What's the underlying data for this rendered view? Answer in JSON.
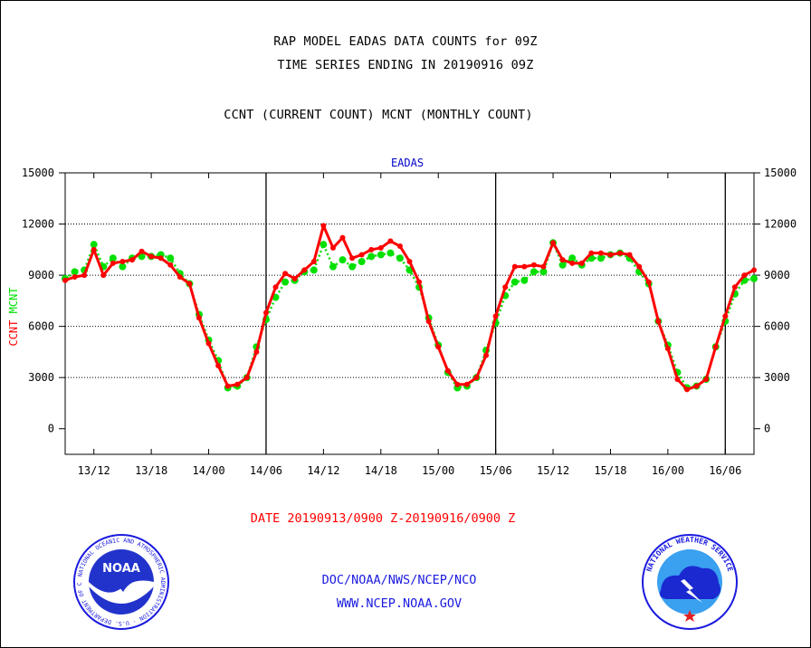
{
  "titles": {
    "line1": "RAP MODEL EADAS DATA COUNTS for 09Z",
    "line2": "TIME SERIES ENDING IN 20190916 09Z",
    "line3": "CCNT (CURRENT COUNT) MCNT (MONTHLY COUNT)"
  },
  "date_range": "DATE 20190913/0900 Z-20190916/0900 Z",
  "footer": {
    "link1": "DOC/NOAA/NWS/NCEP/NCO",
    "link2": "WWW.NCEP.NOAA.GOV"
  },
  "logos": {
    "noaa": {
      "center_text": "NOAA",
      "ring_text": "NATIONAL OCEANIC AND ATMOSPHERIC ADMINISTRATION · U.S. DEPARTMENT OF COMMERCE"
    },
    "nws": {
      "ring_text": "NATIONAL WEATHER SERVICE"
    }
  },
  "chart_data": {
    "type": "line",
    "title": "EADAS",
    "ylabel_left": "CCNT  MCNT",
    "ylim": [
      -1500,
      15000
    ],
    "yticks": [
      0,
      3000,
      6000,
      9000,
      12000,
      15000
    ],
    "xlim": [
      0,
      72
    ],
    "x_units": "hours from 2019-09-13 09Z",
    "xtick_positions": [
      3,
      9,
      15,
      21,
      27,
      33,
      39,
      45,
      51,
      57,
      63,
      69
    ],
    "xtick_labels": [
      "13/12",
      "13/18",
      "14/00",
      "14/06",
      "14/12",
      "14/18",
      "15/00",
      "15/06",
      "15/12",
      "15/18",
      "16/00",
      "16/06"
    ],
    "day_boundaries": [
      21,
      45,
      69
    ],
    "grid": "horizontal dotted at 3000, 6000, 9000, 12000",
    "colors": {
      "ccnt": "#ff0000",
      "mcnt": "#00e000",
      "title": "#0000cc"
    },
    "series": [
      {
        "name": "CCNT",
        "values": [
          8700,
          8900,
          9000,
          10500,
          9000,
          9700,
          9800,
          9900,
          10400,
          10100,
          10000,
          9600,
          8900,
          8500,
          6500,
          5000,
          3700,
          2500,
          2600,
          3000,
          4500,
          6800,
          8300,
          9100,
          8800,
          9300,
          9800,
          11900,
          10600,
          11200,
          10000,
          10200,
          10500,
          10600,
          11000,
          10700,
          9800,
          8600,
          6300,
          4800,
          3400,
          2600,
          2600,
          3000,
          4300,
          6600,
          8300,
          9500,
          9500,
          9600,
          9500,
          10900,
          9900,
          9700,
          9700,
          10300,
          10300,
          10200,
          10300,
          10200,
          9500,
          8600,
          6300,
          4700,
          2900,
          2300,
          2500,
          2900,
          4800,
          6600,
          8300,
          9000,
          9300
        ]
      },
      {
        "name": "MCNT",
        "values": [
          8800,
          9200,
          9300,
          10800,
          9500,
          10000,
          9500,
          10000,
          10100,
          10100,
          10200,
          10000,
          9100,
          8500,
          6700,
          5200,
          4000,
          2400,
          2500,
          3000,
          4800,
          6400,
          7700,
          8600,
          8700,
          9200,
          9300,
          10800,
          9500,
          9900,
          9500,
          9800,
          10100,
          10200,
          10300,
          10000,
          9300,
          8300,
          6500,
          4900,
          3300,
          2400,
          2500,
          3000,
          4600,
          6200,
          7800,
          8600,
          8700,
          9200,
          9200,
          10900,
          9600,
          10000,
          9600,
          10000,
          10000,
          10200,
          10300,
          10000,
          9200,
          8500,
          6300,
          4900,
          3300,
          2400,
          2500,
          2900,
          4800,
          6300,
          7900,
          8700,
          8800
        ]
      }
    ]
  }
}
